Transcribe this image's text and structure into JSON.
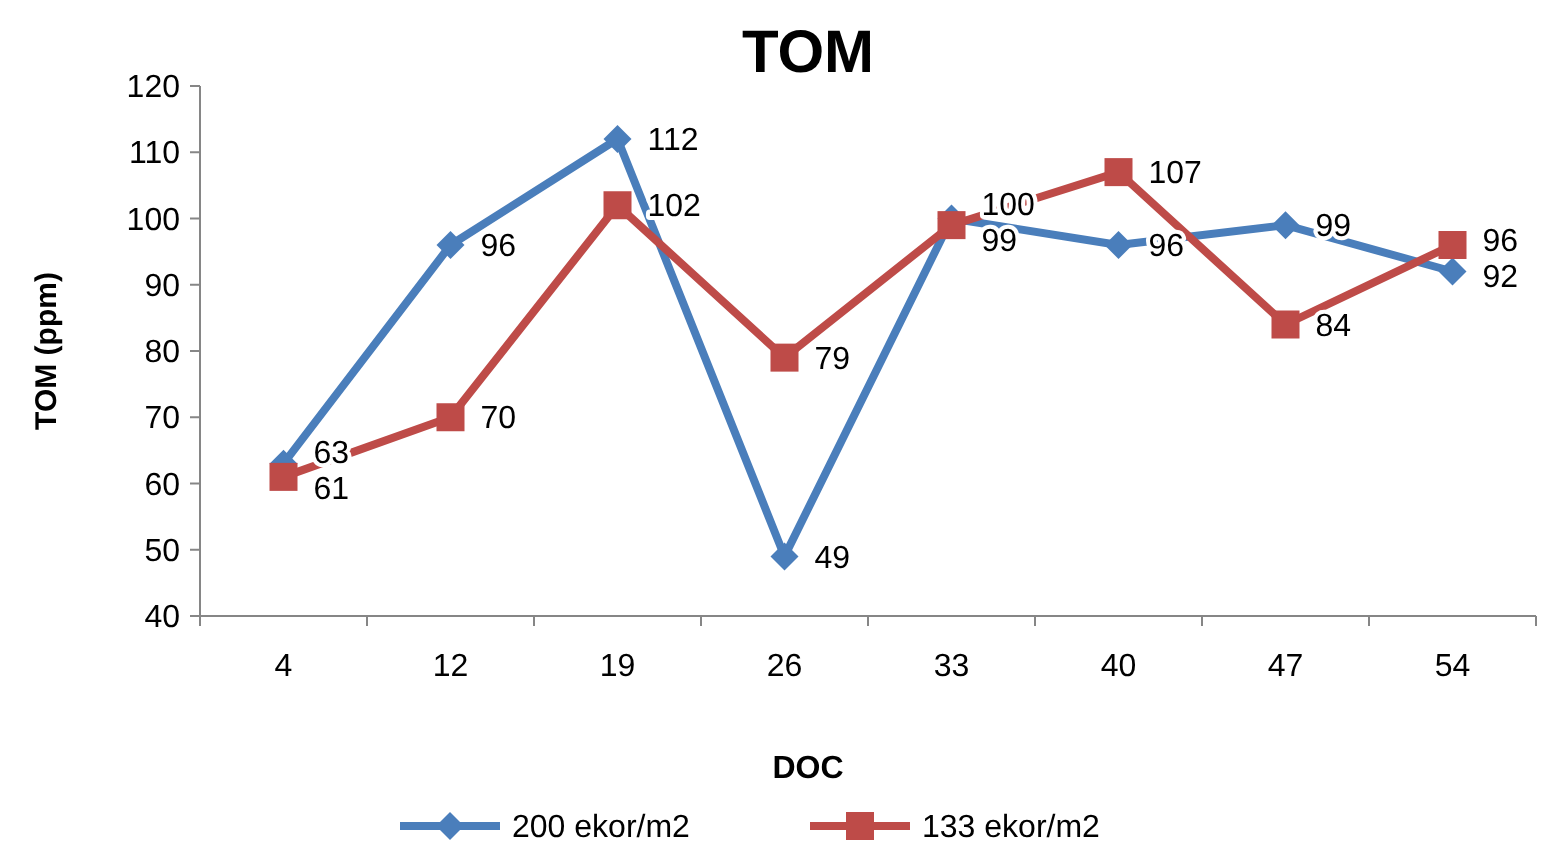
{
  "chart_data": {
    "type": "line",
    "title": "TOM",
    "xlabel": "DOC",
    "ylabel": "TOM (ppm)",
    "categories": [
      "4",
      "12",
      "19",
      "26",
      "33",
      "40",
      "47",
      "54"
    ],
    "series": [
      {
        "name": "200 ekor/m2",
        "color": "#4a7ebb",
        "values": [
          63,
          96,
          112,
          49,
          100,
          96,
          99,
          92
        ],
        "marker": "diamond"
      },
      {
        "name": "133 ekor/m2",
        "color": "#be4b48",
        "values": [
          61,
          70,
          102,
          79,
          99,
          107,
          84,
          96
        ],
        "marker": "square"
      }
    ],
    "ylim": [
      40,
      120
    ],
    "yticks": [
      40,
      50,
      60,
      70,
      80,
      90,
      100,
      110,
      120
    ],
    "grid": false,
    "legend": "bottom",
    "data_labels": true,
    "line_style": "solid"
  }
}
